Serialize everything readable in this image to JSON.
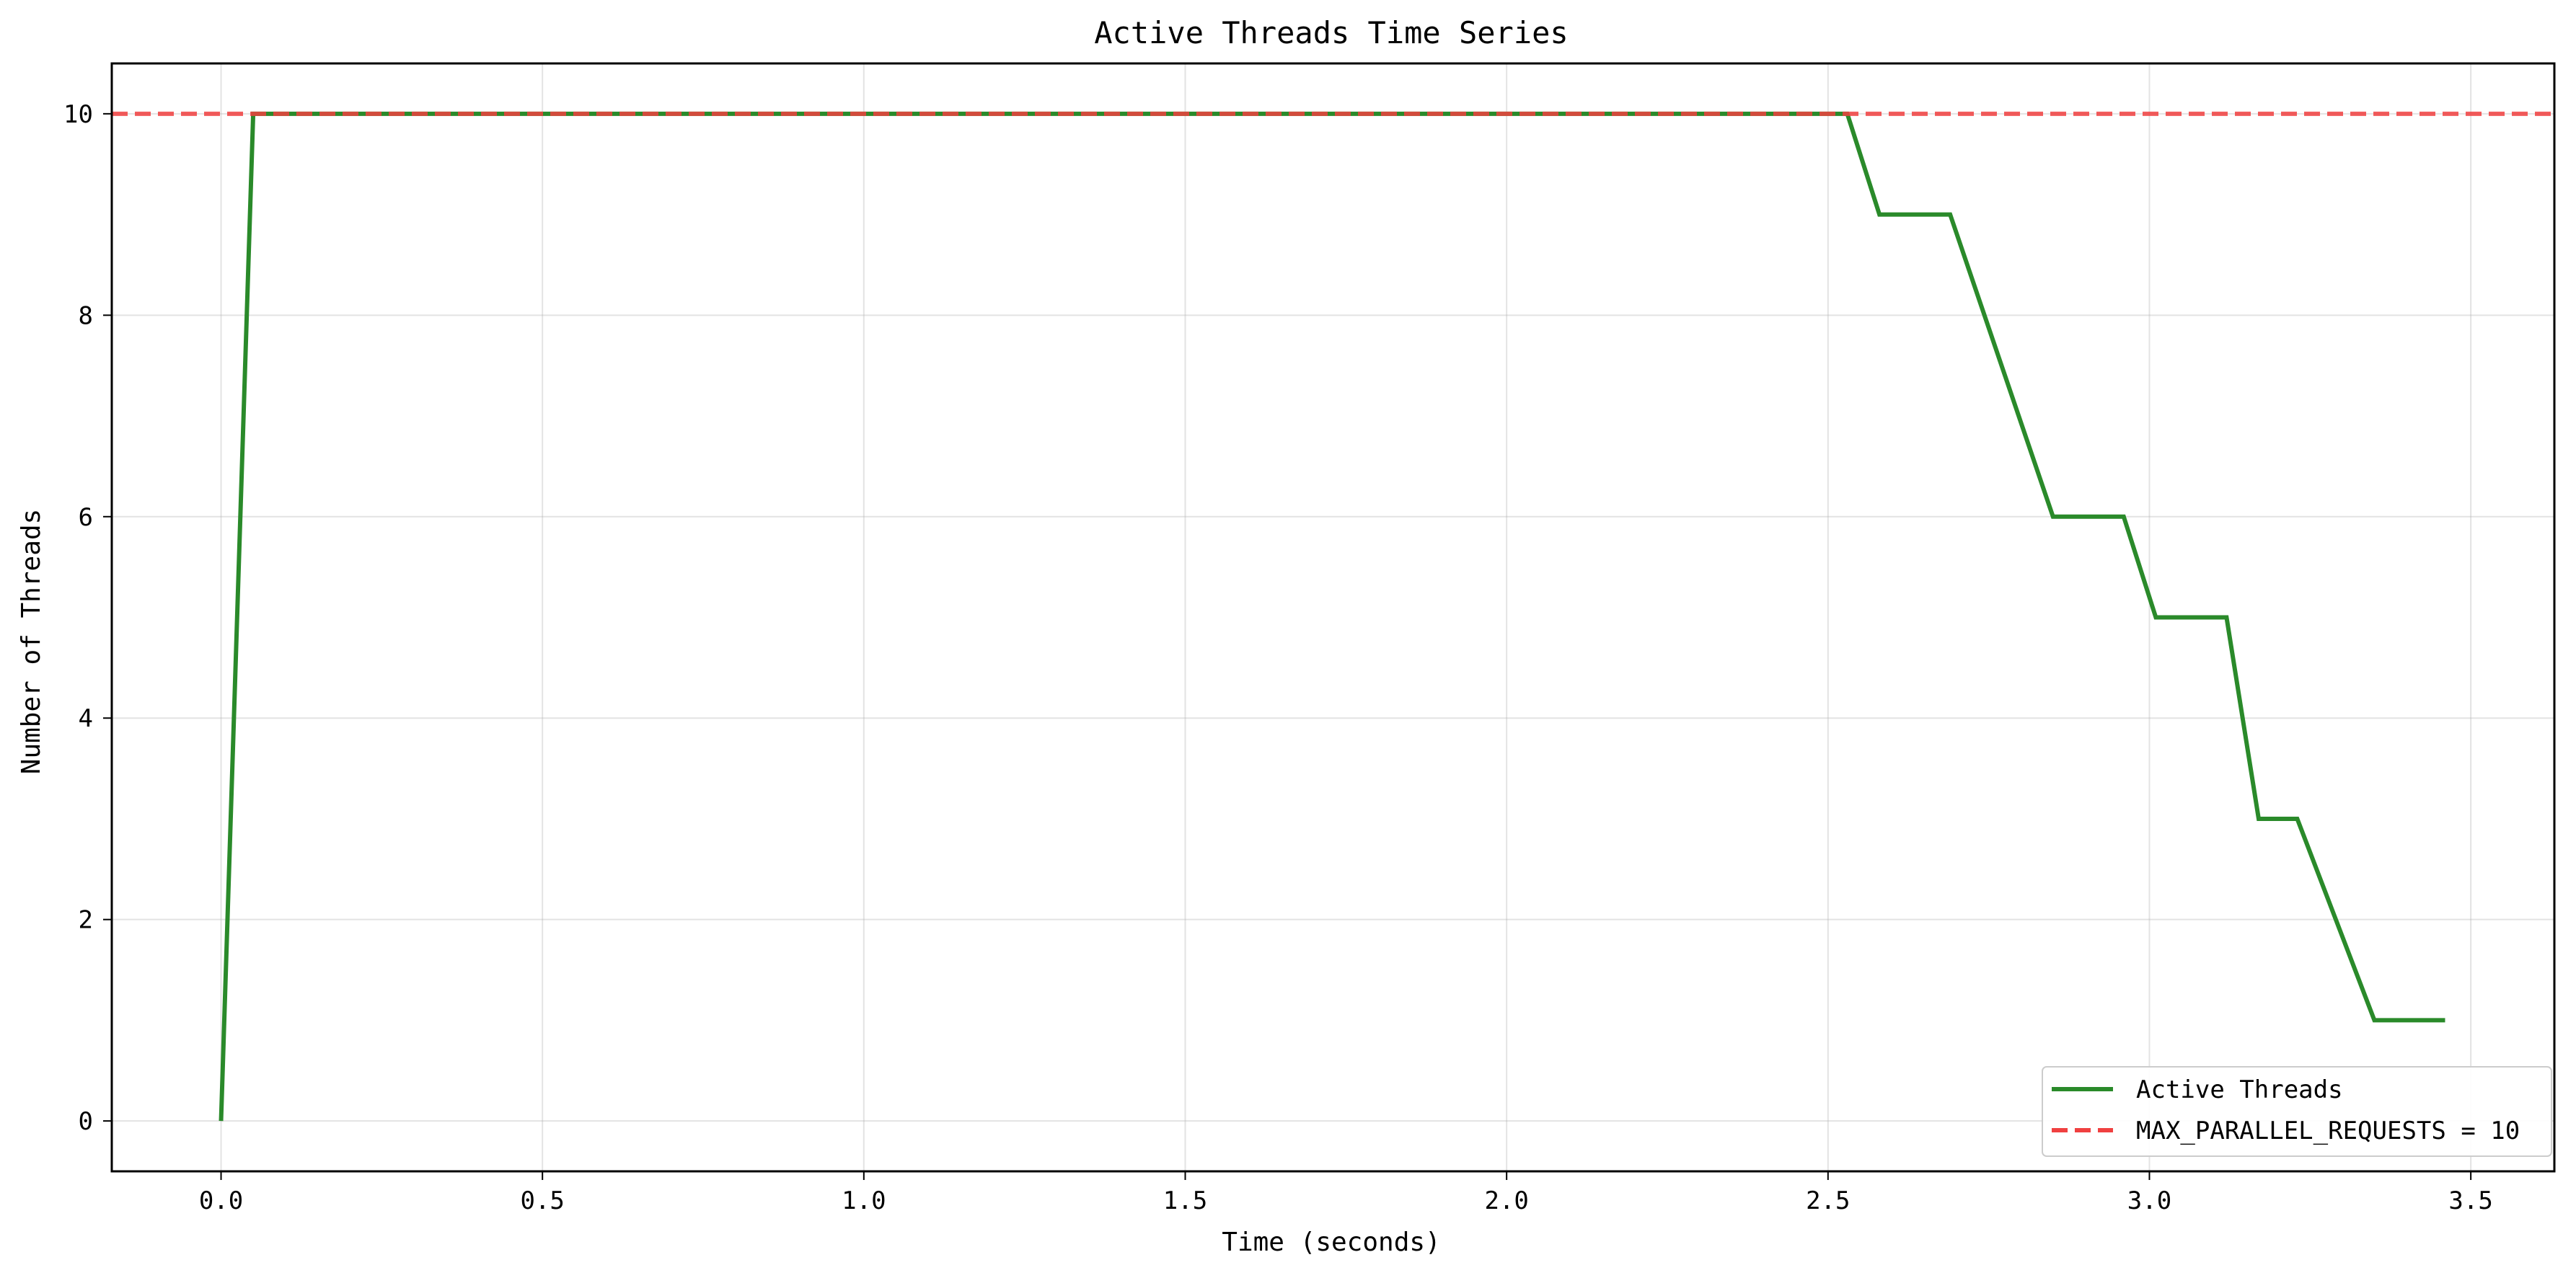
{
  "chart_data": {
    "type": "line",
    "title": "Active Threads Time Series",
    "xlabel": "Time (seconds)",
    "ylabel": "Number of Threads",
    "xlim": [
      -0.17,
      3.63
    ],
    "ylim": [
      -0.5,
      10.5
    ],
    "xticks": [
      0.0,
      0.5,
      1.0,
      1.5,
      2.0,
      2.5,
      3.0,
      3.5
    ],
    "xtick_labels": [
      "0.0",
      "0.5",
      "1.0",
      "1.5",
      "2.0",
      "2.5",
      "3.0",
      "3.5"
    ],
    "yticks": [
      0,
      2,
      4,
      6,
      8,
      10
    ],
    "ytick_labels": [
      "0",
      "2",
      "4",
      "6",
      "8",
      "10"
    ],
    "grid": true,
    "legend_position": "lower-right",
    "series": [
      {
        "name": "Active Threads",
        "color": "#2a8a2a",
        "style": "solid",
        "x": [
          0.0,
          0.05,
          2.53,
          2.58,
          2.69,
          2.85,
          2.96,
          3.01,
          3.12,
          3.17,
          3.23,
          3.35,
          3.46
        ],
        "y": [
          0,
          10,
          10,
          9,
          9,
          6,
          6,
          5,
          5,
          3,
          3,
          1,
          1
        ]
      },
      {
        "name": "MAX_PARALLEL_REQUESTS = 10",
        "color": "#f04040",
        "style": "dashed",
        "hline": 10
      }
    ]
  }
}
